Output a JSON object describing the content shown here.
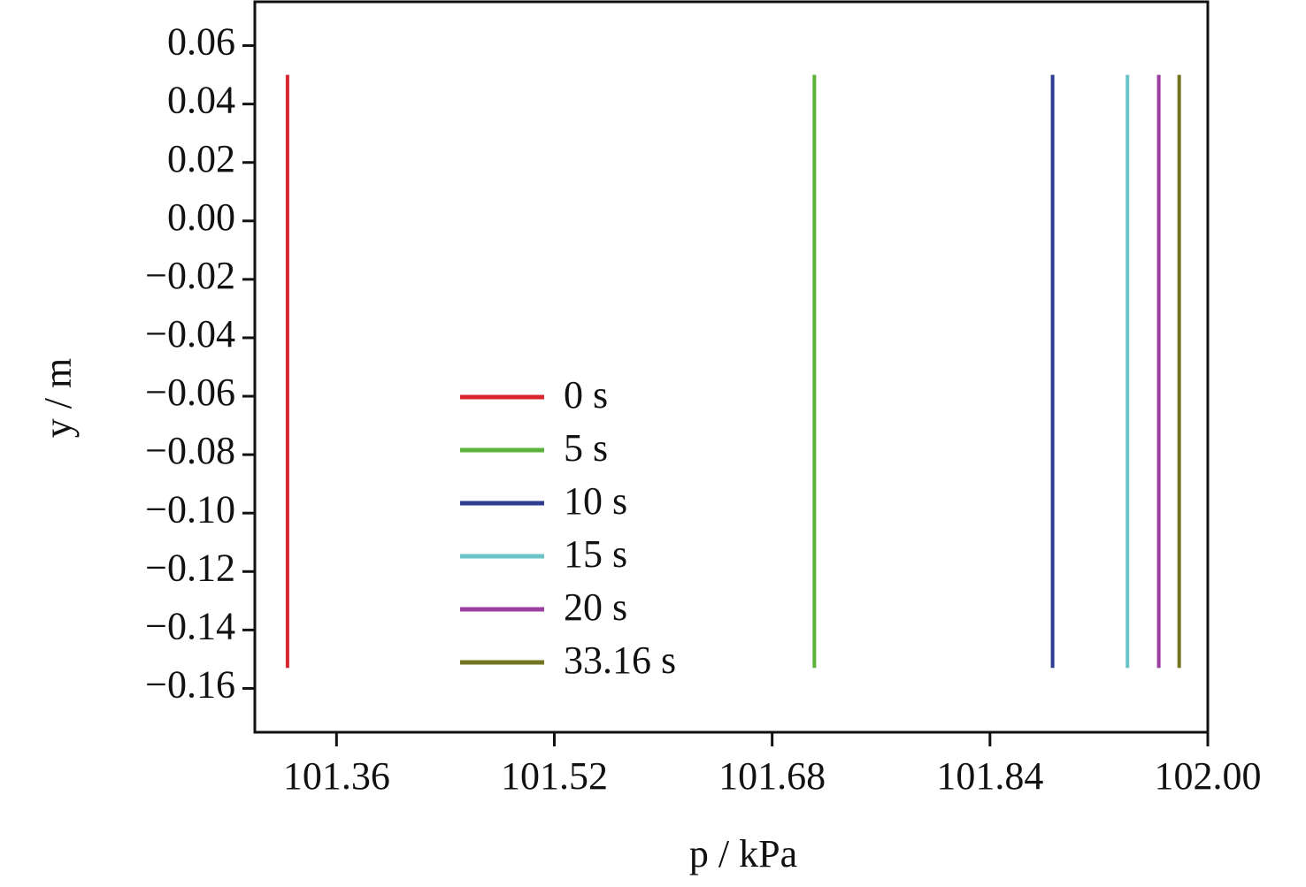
{
  "chart_data": {
    "type": "line",
    "xlabel": "p / kPa",
    "ylabel": "y / m",
    "xlim": [
      101.3,
      102.0
    ],
    "ylim": [
      -0.175,
      0.075
    ],
    "xticks": [
      101.36,
      101.52,
      101.68,
      101.84,
      {
        "value": 102.0,
        "label": "102.00"
      }
    ],
    "yticks": [
      0.06,
      0.04,
      0.02,
      {
        "value": 0,
        "label": "0.00"
      },
      {
        "value": -0.02,
        "label": "−0.02"
      },
      {
        "value": -0.04,
        "label": "−0.04"
      },
      {
        "value": -0.06,
        "label": "−0.06"
      },
      {
        "value": -0.08,
        "label": "−0.08"
      },
      {
        "value": -0.1,
        "label": "−0.10"
      },
      {
        "value": -0.12,
        "label": "−0.12"
      },
      {
        "value": -0.14,
        "label": "−0.14"
      },
      {
        "value": -0.16,
        "label": "−0.16"
      }
    ],
    "legend": "lower-left",
    "series": [
      {
        "name": "0 s",
        "color": "#d9262e",
        "x": [
          101.324,
          101.324
        ],
        "y": [
          0.05,
          -0.153
        ]
      },
      {
        "name": "5 s",
        "color": "#5bb33a",
        "x": [
          101.711,
          101.711
        ],
        "y": [
          0.05,
          -0.153
        ]
      },
      {
        "name": "10 s",
        "color": "#2e3d8f",
        "x": [
          101.886,
          101.886
        ],
        "y": [
          0.05,
          -0.153
        ]
      },
      {
        "name": "15 s",
        "color": "#6cc3c7",
        "x": [
          101.941,
          101.941
        ],
        "y": [
          0.05,
          -0.153
        ]
      },
      {
        "name": "20 s",
        "color": "#9a3fa0",
        "x": [
          101.964,
          101.964
        ],
        "y": [
          0.05,
          -0.153
        ]
      },
      {
        "name": "33.16 s",
        "color": "#737320",
        "x": [
          101.979,
          101.979
        ],
        "y": [
          0.05,
          -0.153
        ]
      }
    ]
  }
}
